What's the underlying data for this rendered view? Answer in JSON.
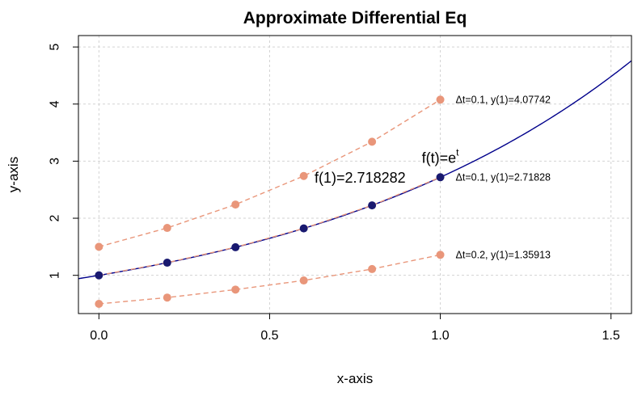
{
  "chart_data": {
    "type": "line",
    "title": "Approximate Differential Eq",
    "xlabel": "x-axis",
    "ylabel": "y-axis",
    "xlim": [
      -0.06,
      1.56
    ],
    "ylim": [
      0.33,
      5.2
    ],
    "grid": true,
    "x_ticks": [
      0,
      0.5,
      1,
      1.5
    ],
    "x_tick_labels": [
      "0.0",
      "0.5",
      "1.0",
      "1.5"
    ],
    "y_ticks": [
      1,
      2,
      3,
      4,
      5
    ],
    "y_tick_labels": [
      "1",
      "2",
      "3",
      "4",
      "5"
    ],
    "colors": {
      "approx": "#e9967a",
      "exact_points": "#191970",
      "curve": "#00008b"
    },
    "curve": {
      "function": "exp",
      "x_range": [
        -0.06,
        1.56
      ],
      "label_base": "f(t)=e",
      "label_sup": "t"
    },
    "series": [
      {
        "x": [
          0,
          0.2,
          0.4,
          0.6,
          0.8,
          1.0
        ],
        "y": [
          1.5,
          1.83,
          2.24,
          2.74,
          3.34,
          4.07742
        ],
        "style": "dashed",
        "color": "#e9967a",
        "label": "Δt=0.1, y(1)=4.07742"
      },
      {
        "x": [
          0,
          0.2,
          0.4,
          0.6,
          0.8,
          1.0
        ],
        "y": [
          1.0,
          1.2214,
          1.4918,
          1.8221,
          2.2255,
          2.71828
        ],
        "style": "dashed",
        "color": "#e9967a",
        "point_color": "#191970",
        "label": "Δt=0.1, y(1)=2.71828"
      },
      {
        "x": [
          0,
          0.2,
          0.4,
          0.6,
          0.8,
          1.0
        ],
        "y": [
          0.5,
          0.61,
          0.75,
          0.91,
          1.11,
          1.35913
        ],
        "style": "dashed",
        "color": "#e9967a",
        "label": "Δt=0.2, y(1)=1.35913"
      }
    ],
    "annotations": [
      {
        "text": "f(1)=2.718282",
        "x": 0.765,
        "y": 2.71
      }
    ]
  }
}
